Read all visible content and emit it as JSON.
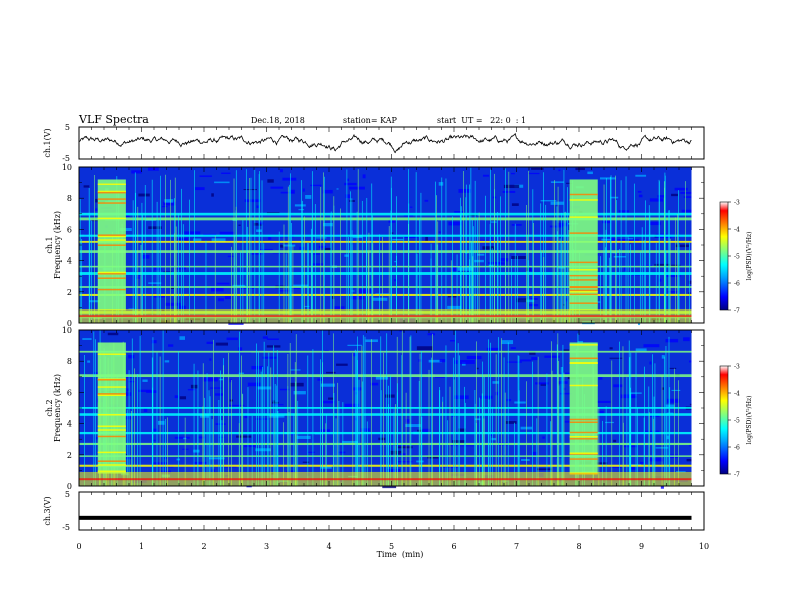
{
  "header": {
    "title": "VLF Spectra",
    "date": "Dec.18, 2018",
    "station": "station= KAP",
    "start": "start  UT =   22: 0  : 1"
  },
  "chart_data": [
    {
      "type": "line",
      "name": "ch1-waveform",
      "ylabel": "ch.1(V)",
      "ylim": [
        -5,
        5
      ],
      "yticks": [
        "5",
        "-5"
      ],
      "xlim": [
        0,
        10
      ],
      "x_extent": 9.8,
      "trace": {
        "mean": 0.6,
        "variance_band": 2.5,
        "dips_at_min": [
          4.1,
          5.1,
          8.7
        ]
      }
    },
    {
      "type": "heatmap",
      "name": "ch1-spectrogram",
      "xlabel": "",
      "ylabel": "ch.1\nFrequency (kHz)",
      "ylim": [
        0,
        10
      ],
      "yticks": [
        "0",
        "2",
        "4",
        "6",
        "8",
        "10"
      ],
      "xlim": [
        0,
        10
      ],
      "x_extent": 9.8,
      "colorbar": {
        "label": "log(PSD)(V²/Hz)",
        "range": [
          -7,
          -3
        ],
        "ticks": [
          "-3",
          "-4",
          "-5",
          "-6",
          "-7"
        ]
      },
      "bursts_min": [
        [
          0.3,
          0.75
        ],
        [
          7.85,
          8.3
        ]
      ],
      "bands_khz": [
        0.4,
        0.7,
        1.8,
        2.3,
        3.2,
        3.6,
        4.6,
        5.2,
        5.6,
        6.7,
        7.0
      ]
    },
    {
      "type": "heatmap",
      "name": "ch2-spectrogram",
      "ylabel": "ch.2\nFrequency (kHz)",
      "ylim": [
        0,
        10
      ],
      "yticks": [
        "0",
        "2",
        "4",
        "6",
        "8",
        "10"
      ],
      "xlim": [
        0,
        10
      ],
      "x_extent": 9.8,
      "colorbar": {
        "label": "log(PSD)(V²/Hz)",
        "range": [
          -7,
          -3
        ],
        "ticks": [
          "-3",
          "-4",
          "-5",
          "-6",
          "-7"
        ]
      },
      "bursts_min": [
        [
          0.3,
          0.75
        ],
        [
          7.85,
          8.3
        ]
      ],
      "bands_khz": [
        1.3,
        1.9,
        2.7,
        3.4,
        4.6,
        5.0,
        7.1,
        8.6
      ]
    },
    {
      "type": "line",
      "name": "ch3-waveform",
      "xlabel": "Time  (min)",
      "ylabel": "ch.3(V)",
      "ylim": [
        -5,
        5
      ],
      "yticks": [
        "5",
        "-5"
      ],
      "xlim": [
        0,
        10
      ],
      "xticks": [
        "0",
        "1",
        "2",
        "3",
        "4",
        "5",
        "6",
        "7",
        "8",
        "9",
        "10"
      ],
      "x_extent": 9.8,
      "constant_value": -1.8
    }
  ],
  "colors": {
    "colormap": [
      "#000080",
      "#0000ff",
      "#00a0ff",
      "#00ffff",
      "#80ff80",
      "#ffff00",
      "#ff8000",
      "#ff0000",
      "#ffffff"
    ]
  }
}
